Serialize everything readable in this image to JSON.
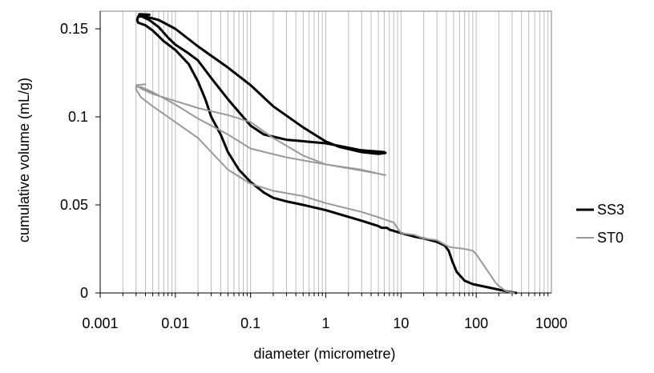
{
  "chart_data": {
    "type": "line",
    "xlabel": "diameter (micrometre)",
    "ylabel": "cumulative volume (mL/g)",
    "xscale": "log",
    "xlim": [
      0.001,
      1000
    ],
    "ylim": [
      0,
      0.16
    ],
    "x_tick_labels": [
      "0.001",
      "0.01",
      "0.1",
      "1",
      "10",
      "100",
      "1000"
    ],
    "y_tick_labels": [
      "0",
      "0.05",
      "0.1",
      "0.15"
    ],
    "grid": "vertical minor gridlines",
    "legend_position": "right",
    "series": [
      {
        "name": "SS3",
        "color": "#000000",
        "points": [
          [
            340,
            0.0
          ],
          [
            250,
            0.001
          ],
          [
            150,
            0.003
          ],
          [
            90,
            0.005
          ],
          [
            70,
            0.007
          ],
          [
            55,
            0.012
          ],
          [
            48,
            0.018
          ],
          [
            43,
            0.024
          ],
          [
            38,
            0.027
          ],
          [
            30,
            0.029
          ],
          [
            20,
            0.031
          ],
          [
            15,
            0.032
          ],
          [
            10,
            0.034
          ],
          [
            7,
            0.036
          ],
          [
            6.5,
            0.037
          ],
          [
            5.5,
            0.037
          ],
          [
            5,
            0.038
          ],
          [
            3,
            0.041
          ],
          [
            1,
            0.047
          ],
          [
            0.5,
            0.05
          ],
          [
            0.3,
            0.052
          ],
          [
            0.2,
            0.054
          ],
          [
            0.15,
            0.057
          ],
          [
            0.1,
            0.063
          ],
          [
            0.07,
            0.07
          ],
          [
            0.05,
            0.08
          ],
          [
            0.04,
            0.09
          ],
          [
            0.03,
            0.1
          ],
          [
            0.025,
            0.11
          ],
          [
            0.02,
            0.12
          ],
          [
            0.015,
            0.13
          ],
          [
            0.01,
            0.138
          ],
          [
            0.007,
            0.143
          ],
          [
            0.005,
            0.149
          ],
          [
            0.004,
            0.152
          ],
          [
            0.0032,
            0.1535
          ],
          [
            0.0031,
            0.155
          ],
          [
            0.0032,
            0.157
          ],
          [
            0.0036,
            0.157
          ],
          [
            0.0045,
            0.155
          ],
          [
            0.006,
            0.151
          ],
          [
            0.008,
            0.145
          ],
          [
            0.01,
            0.141
          ],
          [
            0.015,
            0.136
          ],
          [
            0.02,
            0.132
          ],
          [
            0.03,
            0.122
          ],
          [
            0.05,
            0.11
          ],
          [
            0.1,
            0.095
          ],
          [
            0.15,
            0.09
          ],
          [
            0.3,
            0.087
          ],
          [
            1,
            0.085
          ],
          [
            3,
            0.081
          ],
          [
            6,
            0.08
          ],
          [
            6.2,
            0.0795
          ],
          [
            5,
            0.079
          ],
          [
            3,
            0.08
          ],
          [
            1.5,
            0.083
          ],
          [
            1,
            0.086
          ],
          [
            0.5,
            0.094
          ],
          [
            0.2,
            0.106
          ],
          [
            0.1,
            0.118
          ],
          [
            0.05,
            0.128
          ],
          [
            0.02,
            0.14
          ],
          [
            0.01,
            0.15
          ],
          [
            0.006,
            0.155
          ],
          [
            0.004,
            0.157
          ],
          [
            0.0035,
            0.158
          ],
          [
            0.0033,
            0.1582
          ],
          [
            0.0034,
            0.1583
          ],
          [
            0.0045,
            0.158
          ]
        ]
      },
      {
        "name": "ST0",
        "color": "#999999",
        "points": [
          [
            320,
            0.0
          ],
          [
            250,
            0.001
          ],
          [
            200,
            0.004
          ],
          [
            180,
            0.006
          ],
          [
            150,
            0.011
          ],
          [
            120,
            0.017
          ],
          [
            100,
            0.022
          ],
          [
            90,
            0.024
          ],
          [
            70,
            0.025
          ],
          [
            45,
            0.026
          ],
          [
            40,
            0.027
          ],
          [
            30,
            0.03
          ],
          [
            20,
            0.031
          ],
          [
            15,
            0.033
          ],
          [
            10,
            0.034
          ],
          [
            8,
            0.04
          ],
          [
            5,
            0.043
          ],
          [
            3,
            0.046
          ],
          [
            1,
            0.051
          ],
          [
            0.5,
            0.055
          ],
          [
            0.2,
            0.058
          ],
          [
            0.1,
            0.062
          ],
          [
            0.05,
            0.07
          ],
          [
            0.03,
            0.08
          ],
          [
            0.02,
            0.088
          ],
          [
            0.01,
            0.097
          ],
          [
            0.005,
            0.106
          ],
          [
            0.0035,
            0.111
          ],
          [
            0.003,
            0.1155
          ],
          [
            0.003,
            0.117
          ],
          [
            0.0035,
            0.117
          ],
          [
            0.005,
            0.114
          ],
          [
            0.01,
            0.107
          ],
          [
            0.02,
            0.099
          ],
          [
            0.05,
            0.09
          ],
          [
            0.1,
            0.082
          ],
          [
            0.3,
            0.077
          ],
          [
            1,
            0.073
          ],
          [
            3,
            0.07
          ],
          [
            6,
            0.067
          ],
          [
            6.2,
            0.067
          ],
          [
            3,
            0.0695
          ],
          [
            1,
            0.073
          ],
          [
            0.5,
            0.078
          ],
          [
            0.2,
            0.088
          ],
          [
            0.1,
            0.097
          ],
          [
            0.05,
            0.101
          ],
          [
            0.02,
            0.105
          ],
          [
            0.01,
            0.109
          ],
          [
            0.005,
            0.113
          ],
          [
            0.0035,
            0.116
          ],
          [
            0.003,
            0.118
          ],
          [
            0.004,
            0.1185
          ]
        ]
      }
    ]
  }
}
